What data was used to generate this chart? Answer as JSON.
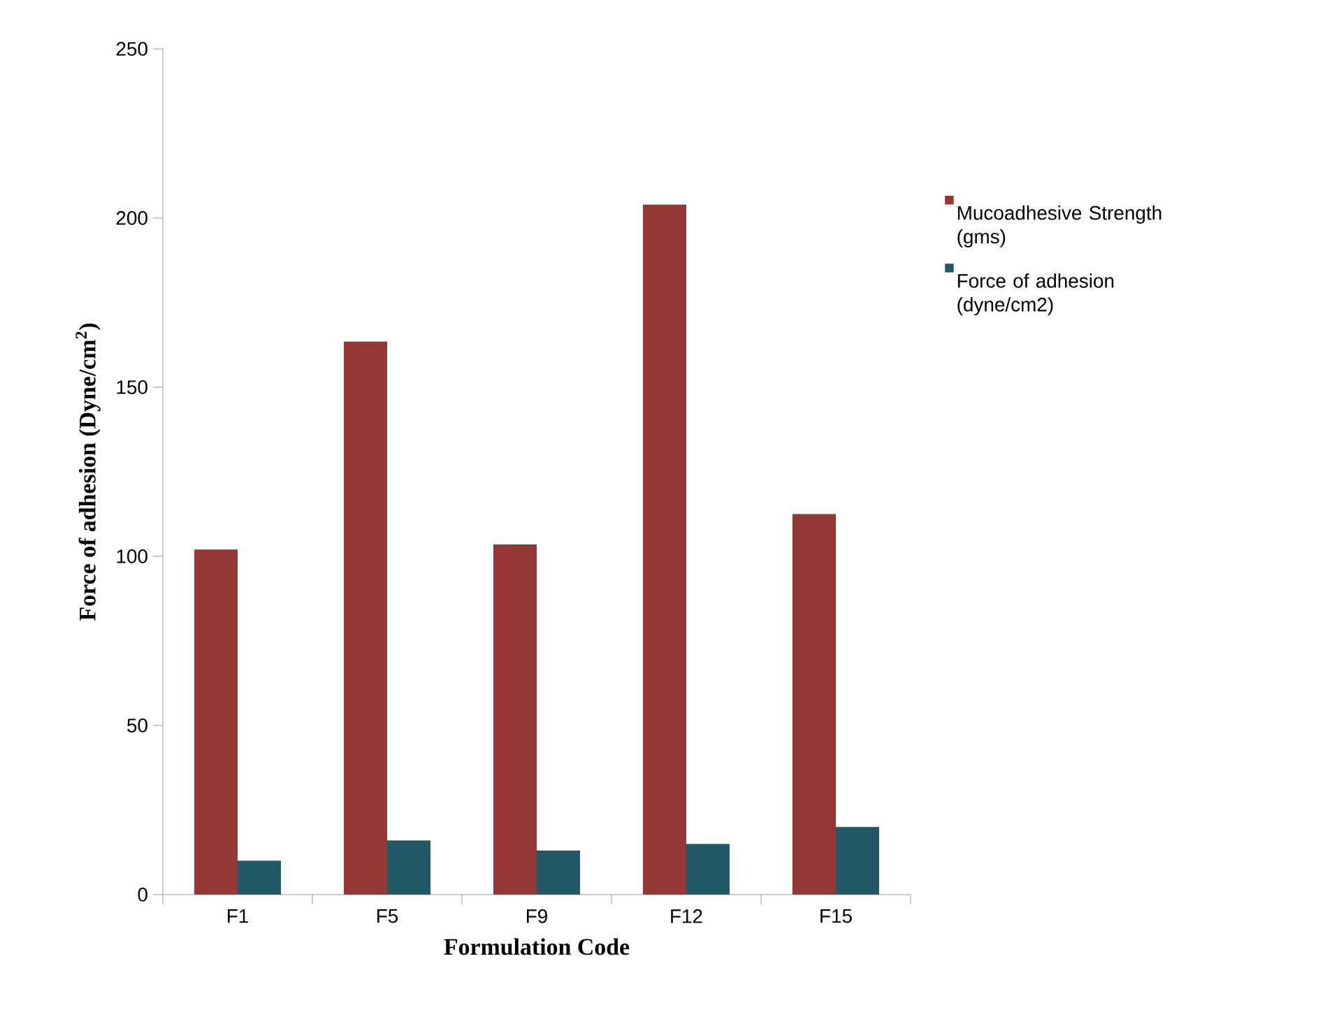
{
  "chart_data": {
    "type": "bar",
    "xlabel": "Formulation Code",
    "ylabel": "Force of adhesion  (Dyne/cm$^{2}$)",
    "categories": [
      "F1",
      "F5",
      "F9",
      "F12",
      "F15"
    ],
    "series": [
      {
        "name": "Mucoadhesive Strength (gms)",
        "color": "#953735",
        "values": [
          102,
          163.5,
          103.5,
          204,
          112.5
        ]
      },
      {
        "name": "Force of adhesion (dyne/cm2)",
        "color": "#215968",
        "values": [
          10,
          16,
          13,
          15,
          20
        ]
      }
    ],
    "ylim": [
      0,
      250
    ],
    "yticks": [
      0,
      50,
      100,
      150,
      200,
      250
    ],
    "grid": false,
    "legend": "right"
  }
}
